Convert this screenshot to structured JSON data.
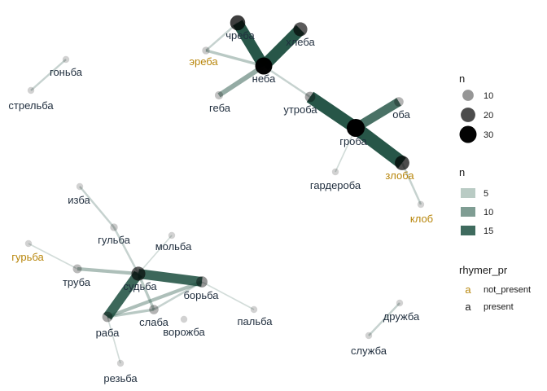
{
  "colors": {
    "node": "#000000",
    "edge": "#1b4d3e",
    "present": "#1f2d3d",
    "not_present": "#b8860b"
  },
  "nodes": [
    {
      "id": "ч-ереба",
      "label": "чреба",
      "n": 22,
      "status": "present"
    },
    {
      "id": "хлеба",
      "label": "хлеба",
      "n": 18,
      "status": "present"
    },
    {
      "id": "эреба",
      "label": "эреба",
      "n": 3,
      "status": "not_present"
    },
    {
      "id": "неба",
      "label": "неба",
      "n": 30,
      "status": "present"
    },
    {
      "id": "геба",
      "label": "геба",
      "n": 4,
      "status": "present"
    },
    {
      "id": "гоньба",
      "label": "гоньба",
      "n": 2,
      "status": "present"
    },
    {
      "id": "стрельба",
      "label": "стрельба",
      "n": 2,
      "status": "present"
    },
    {
      "id": "утроба",
      "label": "утроба",
      "n": 8,
      "status": "present"
    },
    {
      "id": "оба",
      "label": "оба",
      "n": 6,
      "status": "present"
    },
    {
      "id": "гроба",
      "label": "гроба",
      "n": 34,
      "status": "present"
    },
    {
      "id": "гардероба",
      "label": "гардероба",
      "n": 2,
      "status": "present"
    },
    {
      "id": "злоба",
      "label": "злоба",
      "n": 20,
      "status": "not_present"
    },
    {
      "id": "клоб",
      "label": "клоб",
      "n": 2,
      "status": "not_present"
    },
    {
      "id": "изба",
      "label": "изба",
      "n": 2,
      "status": "present"
    },
    {
      "id": "гульба",
      "label": "гульба",
      "n": 3,
      "status": "present"
    },
    {
      "id": "мольба",
      "label": "мольба",
      "n": 2,
      "status": "present"
    },
    {
      "id": "гурьба",
      "label": "гурьба",
      "n": 2,
      "status": "not_present"
    },
    {
      "id": "труба",
      "label": "труба",
      "n": 5,
      "status": "present"
    },
    {
      "id": "судьба",
      "label": "судьба",
      "n": 18,
      "status": "present"
    },
    {
      "id": "борьба",
      "label": "борьба",
      "n": 10,
      "status": "present"
    },
    {
      "id": "пальба",
      "label": "пальба",
      "n": 2,
      "status": "present"
    },
    {
      "id": "слаба",
      "label": "слаба",
      "n": 6,
      "status": "present"
    },
    {
      "id": "ворожба",
      "label": "ворожба",
      "n": 2,
      "status": "present"
    },
    {
      "id": "раба",
      "label": "раба",
      "n": 8,
      "status": "present"
    },
    {
      "id": "резьба",
      "label": "резьба",
      "n": 2,
      "status": "present"
    },
    {
      "id": "дружба",
      "label": "дружба",
      "n": 2,
      "status": "present"
    },
    {
      "id": "служба",
      "label": "служба",
      "n": 2,
      "status": "present"
    }
  ],
  "edges": [
    {
      "from": "ч-ереба",
      "to": "неба",
      "n": 15
    },
    {
      "from": "хлеба",
      "to": "неба",
      "n": 16
    },
    {
      "from": "эреба",
      "to": "ч-ереба",
      "n": 2
    },
    {
      "from": "эреба",
      "to": "неба",
      "n": 3
    },
    {
      "from": "геба",
      "to": "неба",
      "n": 6
    },
    {
      "from": "неба",
      "to": "утроба",
      "n": 2
    },
    {
      "from": "гоньба",
      "to": "стрельба",
      "n": 2
    },
    {
      "from": "утроба",
      "to": "гроба",
      "n": 17
    },
    {
      "from": "оба",
      "to": "гроба",
      "n": 12
    },
    {
      "from": "гроба",
      "to": "злоба",
      "n": 18
    },
    {
      "from": "гроба",
      "to": "гардероба",
      "n": 1
    },
    {
      "from": "злоба",
      "to": "клоб",
      "n": 2
    },
    {
      "from": "изба",
      "to": "гульба",
      "n": 2
    },
    {
      "from": "гульба",
      "to": "судьба",
      "n": 2
    },
    {
      "from": "мольба",
      "to": "судьба",
      "n": 1
    },
    {
      "from": "гурьба",
      "to": "труба",
      "n": 1
    },
    {
      "from": "труба",
      "to": "судьба",
      "n": 4
    },
    {
      "from": "судьба",
      "to": "борьба",
      "n": 13
    },
    {
      "from": "судьба",
      "to": "раба",
      "n": 13
    },
    {
      "from": "судьба",
      "to": "слаба",
      "n": 3
    },
    {
      "from": "борьба",
      "to": "раба",
      "n": 4
    },
    {
      "from": "борьба",
      "to": "пальба",
      "n": 1
    },
    {
      "from": "раба",
      "to": "слаба",
      "n": 3
    },
    {
      "from": "слаба",
      "to": "борьба",
      "n": 2
    },
    {
      "from": "раба",
      "to": "резьба",
      "n": 1
    },
    {
      "from": "дружба",
      "to": "служба",
      "n": 2
    }
  ],
  "legend": {
    "node_size": {
      "title": "n",
      "items": [
        10,
        20,
        30
      ]
    },
    "edge_width": {
      "title": "n",
      "items": [
        5,
        10,
        15
      ]
    },
    "rhymer": {
      "title": "rhymer_pr",
      "items": [
        {
          "key": "not_present",
          "glyph": "a"
        },
        {
          "key": "present",
          "glyph": "a"
        }
      ]
    }
  }
}
